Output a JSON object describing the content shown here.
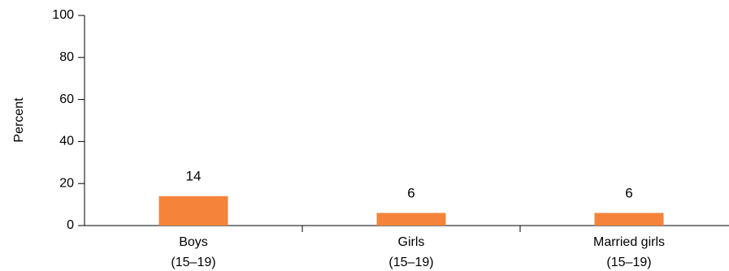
{
  "chart_data": {
    "type": "bar",
    "categories": [
      [
        "Boys",
        "(15–19)"
      ],
      [
        "Girls",
        "(15–19)"
      ],
      [
        "Married girls",
        "(15–19)"
      ]
    ],
    "values": [
      14,
      6,
      6
    ],
    "data_labels": [
      "14",
      "6",
      "6"
    ],
    "ylabel": "Percent",
    "ylim": [
      0,
      100
    ],
    "yticks": [
      0,
      20,
      40,
      60,
      80,
      100
    ],
    "grid": false,
    "bar_color": "#f5843a"
  }
}
